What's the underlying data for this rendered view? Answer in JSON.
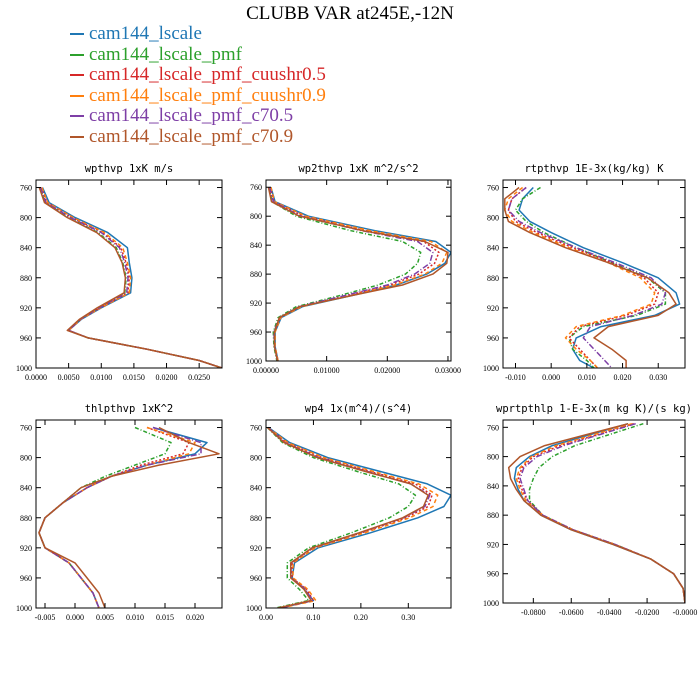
{
  "title": "CLUBB VAR at245E,-12N",
  "legend": [
    {
      "label": "cam144_lscale",
      "color": "#1f77b4",
      "dash": ""
    },
    {
      "label": "cam144_lscale_pmf",
      "color": "#2ca02c",
      "dash": "4,2,1,2"
    },
    {
      "label": "cam144_lscale_pmf_cuushr0.5",
      "color": "#d62728",
      "dash": "2,2"
    },
    {
      "label": "cam144_lscale_pmf_cuushr0.9",
      "color": "#ff7f0e",
      "dash": "4,3"
    },
    {
      "label": "cam144_lscale_pmf_c70.5",
      "color": "#7e3fa6",
      "dash": "6,2,1,2"
    },
    {
      "label": "cam144_lscale_pmf_c70.9",
      "color": "#b0562a",
      "dash": ""
    }
  ],
  "chart_data": [
    {
      "type": "line",
      "title": "wpthvp  1xK m/s",
      "ylim": [
        1000,
        750
      ],
      "xlim": [
        0,
        0.0285
      ],
      "yticks": [
        760,
        800,
        840,
        880,
        920,
        960,
        1000
      ],
      "xticks": [
        0,
        0.005,
        0.01,
        0.015,
        0.02,
        0.025
      ],
      "xticklabels": [
        "0.0000",
        "0.0050",
        "0.0100",
        "0.0150",
        "0.0200",
        "0.0250"
      ],
      "y": [
        760,
        780,
        800,
        820,
        840,
        860,
        880,
        900,
        920,
        935,
        950,
        960,
        975,
        990,
        1000
      ],
      "series": [
        {
          "name": "cam144_lscale",
          "values": [
            0.001,
            0.002,
            0.006,
            0.011,
            0.014,
            0.0143,
            0.0147,
            0.0145,
            0.01,
            0.007,
            0.005,
            0.008,
            0.017,
            0.025,
            0.0285
          ]
        },
        {
          "name": "cam144_lscale_pmf",
          "values": [
            0.0006,
            0.0014,
            0.005,
            0.0095,
            0.0123,
            0.0133,
            0.0138,
            0.0136,
            0.0095,
            0.0068,
            0.0049,
            0.008,
            0.017,
            0.025,
            0.0285
          ]
        },
        {
          "name": "cam144_lscale_pmf_cuushr0.5",
          "values": [
            0.0008,
            0.0017,
            0.0055,
            0.0102,
            0.013,
            0.0138,
            0.0143,
            0.0141,
            0.0098,
            0.0069,
            0.005,
            0.008,
            0.017,
            0.025,
            0.0285
          ]
        },
        {
          "name": "cam144_lscale_pmf_cuushr0.9",
          "values": [
            0.0009,
            0.0018,
            0.0057,
            0.0105,
            0.0133,
            0.014,
            0.0145,
            0.0143,
            0.0099,
            0.0069,
            0.005,
            0.008,
            0.017,
            0.025,
            0.0285
          ]
        },
        {
          "name": "cam144_lscale_pmf_c70.5",
          "values": [
            0.0007,
            0.0015,
            0.0053,
            0.01,
            0.0128,
            0.0136,
            0.0141,
            0.0139,
            0.0097,
            0.0068,
            0.005,
            0.008,
            0.017,
            0.025,
            0.0285
          ]
        },
        {
          "name": "cam144_lscale_pmf_c70.9",
          "values": [
            0.0005,
            0.0013,
            0.0048,
            0.0093,
            0.0121,
            0.0132,
            0.0137,
            0.0135,
            0.0094,
            0.0067,
            0.0048,
            0.008,
            0.017,
            0.025,
            0.0285
          ]
        }
      ]
    },
    {
      "type": "line",
      "title": "wp2thvp  1xK m^2/s^2",
      "ylim": [
        1000,
        750
      ],
      "xlim": [
        0,
        0.0305
      ],
      "yticks": [
        760,
        800,
        840,
        880,
        920,
        960,
        1000
      ],
      "xticks": [
        0,
        0.01,
        0.02,
        0.03
      ],
      "xticklabels": [
        "0.00000",
        "0.01000",
        "0.02000",
        "0.03000"
      ],
      "y": [
        760,
        780,
        800,
        820,
        835,
        850,
        865,
        880,
        895,
        910,
        925,
        940,
        960,
        980,
        1000
      ],
      "series": [
        {
          "name": "cam144_lscale",
          "values": [
            0.0008,
            0.0015,
            0.007,
            0.018,
            0.028,
            0.0305,
            0.0295,
            0.0265,
            0.0215,
            0.014,
            0.006,
            0.0025,
            0.0015,
            0.0015,
            0.002
          ]
        },
        {
          "name": "cam144_lscale_pmf",
          "values": [
            0.0005,
            0.001,
            0.005,
            0.014,
            0.0225,
            0.0255,
            0.025,
            0.023,
            0.0185,
            0.012,
            0.005,
            0.002,
            0.0012,
            0.0013,
            0.0018
          ]
        },
        {
          "name": "cam144_lscale_pmf_cuushr0.5",
          "values": [
            0.0007,
            0.0013,
            0.0062,
            0.0165,
            0.026,
            0.0285,
            0.0278,
            0.0252,
            0.0205,
            0.0132,
            0.0056,
            0.0023,
            0.0014,
            0.0014,
            0.0019
          ]
        },
        {
          "name": "cam144_lscale_pmf_cuushr0.9",
          "values": [
            0.0008,
            0.0014,
            0.0066,
            0.0172,
            0.0272,
            0.0298,
            0.029,
            0.0262,
            0.0212,
            0.0138,
            0.0058,
            0.0024,
            0.0015,
            0.0015,
            0.002
          ]
        },
        {
          "name": "cam144_lscale_pmf_c70.5",
          "values": [
            0.0006,
            0.0012,
            0.0058,
            0.0158,
            0.025,
            0.0275,
            0.027,
            0.0245,
            0.02,
            0.0128,
            0.0054,
            0.0022,
            0.0013,
            0.0014,
            0.0019
          ]
        },
        {
          "name": "cam144_lscale_pmf_c70.9",
          "values": [
            0.0004,
            0.0009,
            0.0055,
            0.016,
            0.0262,
            0.03,
            0.0298,
            0.0275,
            0.0225,
            0.014,
            0.0055,
            0.0022,
            0.0014,
            0.0014,
            0.0019
          ]
        }
      ]
    },
    {
      "type": "line",
      "title": "rtpthvp  1E-3x(kg/kg) K",
      "ylim": [
        1000,
        750
      ],
      "xlim": [
        -0.0135,
        0.0375
      ],
      "yticks": [
        760,
        800,
        840,
        880,
        920,
        960,
        1000
      ],
      "xticks": [
        -0.01,
        0,
        0.01,
        0.02,
        0.03
      ],
      "xticklabels": [
        "-0.010",
        "0.000",
        "0.010",
        "0.020",
        "0.030"
      ],
      "y": [
        760,
        775,
        790,
        805,
        820,
        840,
        860,
        880,
        900,
        915,
        930,
        945,
        960,
        975,
        990,
        1000
      ],
      "series": [
        {
          "name": "cam144_lscale",
          "values": [
            -0.005,
            -0.008,
            -0.009,
            -0.006,
            0.0,
            0.009,
            0.02,
            0.03,
            0.035,
            0.036,
            0.029,
            0.014,
            0.007,
            0.006,
            0.008,
            0.012
          ]
        },
        {
          "name": "cam144_lscale_pmf",
          "values": [
            -0.003,
            -0.008,
            -0.01,
            -0.007,
            -0.002,
            0.007,
            0.017,
            0.027,
            0.032,
            0.032,
            0.024,
            0.009,
            0.005,
            0.006,
            0.01,
            0.012
          ]
        },
        {
          "name": "cam144_lscale_pmf_cuushr0.5",
          "values": [
            -0.007,
            -0.011,
            -0.012,
            -0.01,
            -0.004,
            0.006,
            0.017,
            0.026,
            0.03,
            0.029,
            0.021,
            0.008,
            0.005,
            0.008,
            0.011,
            0.013
          ]
        },
        {
          "name": "cam144_lscale_pmf_cuushr0.9",
          "values": [
            -0.008,
            -0.012,
            -0.013,
            -0.011,
            -0.005,
            0.005,
            0.016,
            0.025,
            0.029,
            0.028,
            0.02,
            0.007,
            0.004,
            0.007,
            0.011,
            0.013
          ]
        },
        {
          "name": "cam144_lscale_pmf_c70.5",
          "values": [
            -0.007,
            -0.011,
            -0.012,
            -0.009,
            -0.003,
            0.007,
            0.018,
            0.028,
            0.032,
            0.031,
            0.023,
            0.011,
            0.009,
            0.012,
            0.015,
            0.017
          ]
        },
        {
          "name": "cam144_lscale_pmf_c70.9",
          "values": [
            -0.009,
            -0.013,
            -0.013,
            -0.012,
            -0.006,
            0.004,
            0.016,
            0.027,
            0.033,
            0.035,
            0.03,
            0.016,
            0.012,
            0.017,
            0.021,
            0.021
          ]
        }
      ]
    },
    {
      "type": "line",
      "title": "thlpthvp  1xK^2",
      "ylim": [
        1000,
        750
      ],
      "xlim": [
        -0.0065,
        0.0245
      ],
      "yticks": [
        760,
        800,
        840,
        880,
        920,
        960,
        1000
      ],
      "xticks": [
        -0.005,
        0,
        0.005,
        0.01,
        0.015,
        0.02
      ],
      "xticklabels": [
        "-0.005",
        "0.000",
        "0.005",
        "0.010",
        "0.015",
        "0.020"
      ],
      "y": [
        760,
        780,
        795,
        810,
        825,
        840,
        860,
        880,
        900,
        920,
        940,
        960,
        980,
        1000
      ],
      "series": [
        {
          "name": "cam144_lscale",
          "values": [
            0.013,
            0.022,
            0.02,
            0.012,
            0.006,
            0.002,
            -0.002,
            -0.005,
            -0.006,
            -0.005,
            -0.001,
            0.001,
            0.003,
            0.004
          ]
        },
        {
          "name": "cam144_lscale_pmf",
          "values": [
            0.01,
            0.016,
            0.015,
            0.01,
            0.005,
            0.001,
            -0.002,
            -0.005,
            -0.006,
            -0.005,
            -0.001,
            0.001,
            0.003,
            0.004
          ]
        },
        {
          "name": "cam144_lscale_pmf_cuushr0.5",
          "values": [
            0.012,
            0.019,
            0.018,
            0.011,
            0.006,
            0.002,
            -0.002,
            -0.005,
            -0.006,
            -0.005,
            -0.001,
            0.001,
            0.003,
            0.004
          ]
        },
        {
          "name": "cam144_lscale_pmf_cuushr0.9",
          "values": [
            0.012,
            0.02,
            0.019,
            0.012,
            0.006,
            0.002,
            -0.002,
            -0.005,
            -0.006,
            -0.005,
            -0.001,
            0.001,
            0.003,
            0.004
          ]
        },
        {
          "name": "cam144_lscale_pmf_c70.5",
          "values": [
            0.013,
            0.021,
            0.021,
            0.012,
            0.006,
            0.002,
            -0.002,
            -0.005,
            -0.006,
            -0.005,
            -0.001,
            0.001,
            0.003,
            0.004
          ]
        },
        {
          "name": "cam144_lscale_pmf_c70.9",
          "values": [
            0.014,
            0.019,
            0.024,
            0.014,
            0.006,
            0.001,
            -0.002,
            -0.005,
            -0.006,
            -0.005,
            0.0,
            0.002,
            0.004,
            0.005
          ]
        }
      ]
    },
    {
      "type": "line",
      "title": "wp4  1x(m^4)/(s^4)",
      "ylim": [
        1000,
        750
      ],
      "xlim": [
        0,
        0.39
      ],
      "yticks": [
        760,
        800,
        840,
        880,
        920,
        960,
        1000
      ],
      "xticks": [
        0,
        0.1,
        0.2,
        0.3
      ],
      "xticklabels": [
        "0.00",
        "0.10",
        "0.20",
        "0.30"
      ],
      "y": [
        760,
        780,
        800,
        820,
        835,
        850,
        865,
        880,
        900,
        920,
        940,
        960,
        975,
        990,
        1000
      ],
      "series": [
        {
          "name": "cam144_lscale",
          "values": [
            0.005,
            0.05,
            0.13,
            0.25,
            0.34,
            0.39,
            0.375,
            0.32,
            0.22,
            0.11,
            0.06,
            0.055,
            0.08,
            0.1,
            0.03
          ]
        },
        {
          "name": "cam144_lscale_pmf",
          "values": [
            0.003,
            0.035,
            0.1,
            0.2,
            0.28,
            0.315,
            0.3,
            0.26,
            0.18,
            0.09,
            0.045,
            0.045,
            0.07,
            0.09,
            0.02
          ]
        },
        {
          "name": "cam144_lscale_pmf_cuushr0.5",
          "values": [
            0.004,
            0.043,
            0.118,
            0.228,
            0.315,
            0.35,
            0.342,
            0.295,
            0.202,
            0.1,
            0.055,
            0.055,
            0.085,
            0.1,
            0.03
          ]
        },
        {
          "name": "cam144_lscale_pmf_cuushr0.9",
          "values": [
            0.004,
            0.046,
            0.122,
            0.235,
            0.322,
            0.362,
            0.352,
            0.303,
            0.208,
            0.104,
            0.057,
            0.057,
            0.088,
            0.105,
            0.032
          ]
        },
        {
          "name": "cam144_lscale_pmf_c70.5",
          "values": [
            0.004,
            0.04,
            0.112,
            0.222,
            0.305,
            0.345,
            0.335,
            0.29,
            0.198,
            0.098,
            0.053,
            0.053,
            0.083,
            0.098,
            0.028
          ]
        },
        {
          "name": "cam144_lscale_pmf_c70.9",
          "values": [
            0.003,
            0.038,
            0.108,
            0.218,
            0.305,
            0.342,
            0.332,
            0.288,
            0.196,
            0.097,
            0.052,
            0.052,
            0.08,
            0.095,
            0.025
          ]
        }
      ]
    },
    {
      "type": "line",
      "title": "wprtpthlp  1-E-3x(m kg K)/(s kg)",
      "ylim": [
        1000,
        750
      ],
      "xlim": [
        -0.096,
        0
      ],
      "yticks": [
        760,
        800,
        840,
        880,
        920,
        960,
        1000
      ],
      "xticks": [
        -0.08,
        -0.06,
        -0.04,
        -0.02,
        0
      ],
      "xticklabels": [
        "-0.0800",
        "-0.0600",
        "-0.0400",
        "-0.0200",
        "-0.0000"
      ],
      "y": [
        755,
        770,
        785,
        800,
        815,
        830,
        845,
        860,
        880,
        900,
        920,
        940,
        960,
        980,
        1000
      ],
      "series": [
        {
          "name": "cam144_lscale",
          "values": [
            -0.03,
            -0.05,
            -0.07,
            -0.082,
            -0.089,
            -0.09,
            -0.088,
            -0.085,
            -0.076,
            -0.06,
            -0.038,
            -0.018,
            -0.006,
            -0.001,
            0.0
          ]
        },
        {
          "name": "cam144_lscale_pmf",
          "values": [
            -0.022,
            -0.04,
            -0.058,
            -0.07,
            -0.077,
            -0.08,
            -0.082,
            -0.082,
            -0.075,
            -0.059,
            -0.037,
            -0.018,
            -0.006,
            -0.001,
            0.0
          ]
        },
        {
          "name": "cam144_lscale_pmf_cuushr0.5",
          "values": [
            -0.027,
            -0.046,
            -0.066,
            -0.08,
            -0.086,
            -0.088,
            -0.086,
            -0.083,
            -0.075,
            -0.059,
            -0.037,
            -0.018,
            -0.006,
            -0.001,
            0.0
          ]
        },
        {
          "name": "cam144_lscale_pmf_cuushr0.9",
          "values": [
            -0.028,
            -0.048,
            -0.068,
            -0.081,
            -0.087,
            -0.089,
            -0.087,
            -0.084,
            -0.075,
            -0.059,
            -0.037,
            -0.018,
            -0.006,
            -0.001,
            0.0
          ]
        },
        {
          "name": "cam144_lscale_pmf_c70.5",
          "values": [
            -0.026,
            -0.045,
            -0.064,
            -0.078,
            -0.085,
            -0.087,
            -0.085,
            -0.083,
            -0.075,
            -0.059,
            -0.037,
            -0.018,
            -0.006,
            -0.001,
            0.0
          ]
        },
        {
          "name": "cam144_lscale_pmf_c70.9",
          "values": [
            -0.03,
            -0.052,
            -0.074,
            -0.087,
            -0.093,
            -0.092,
            -0.089,
            -0.085,
            -0.076,
            -0.06,
            -0.038,
            -0.018,
            -0.006,
            -0.001,
            0.0
          ]
        }
      ]
    }
  ]
}
